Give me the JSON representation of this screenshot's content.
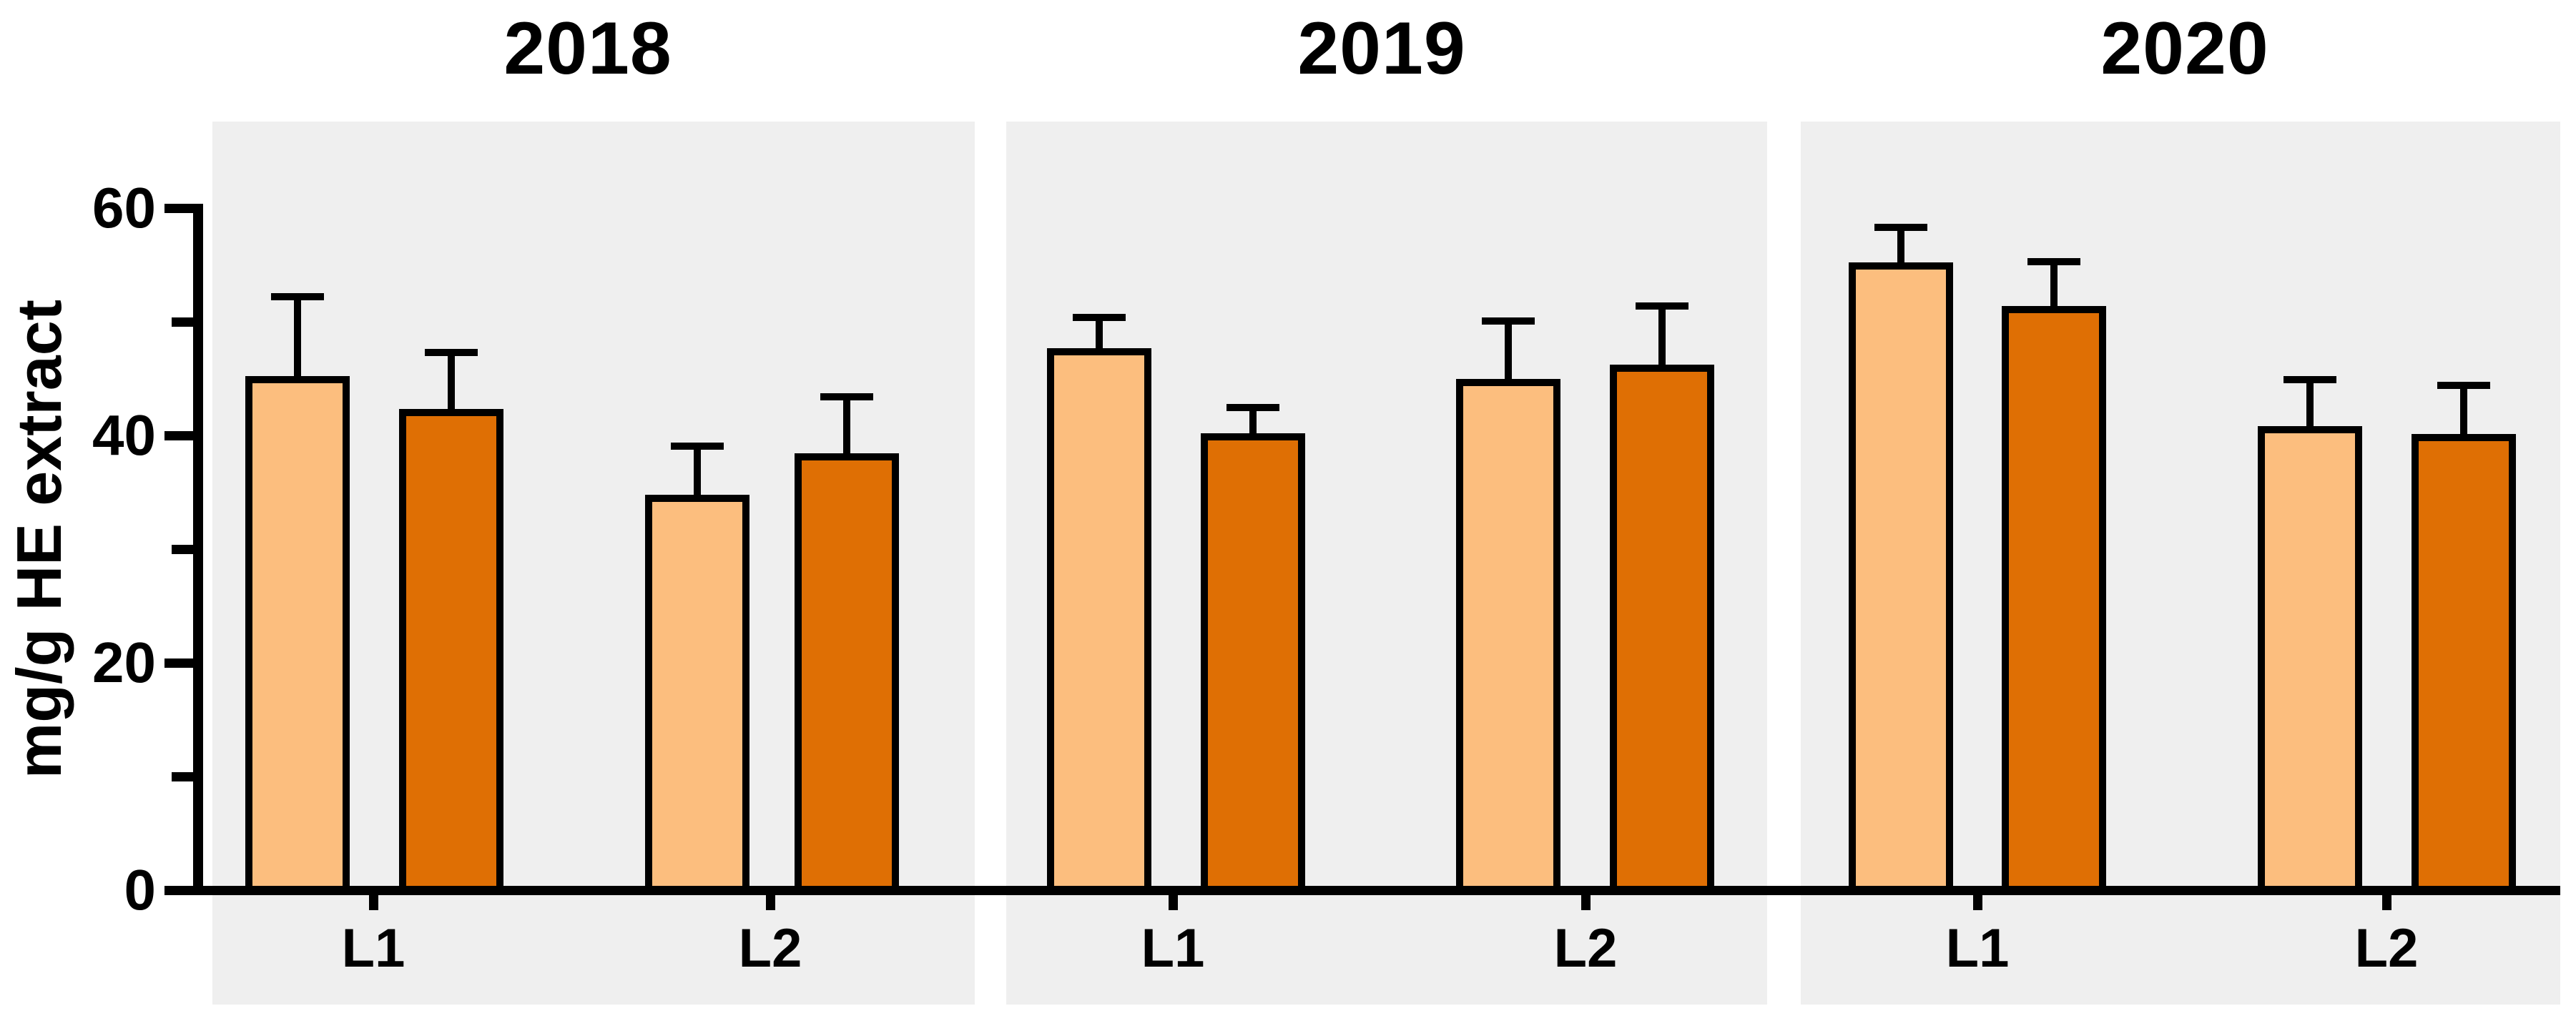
{
  "figure": {
    "background": "#FFFFFF",
    "panel_background": "#EFEFEF",
    "axis_color": "#000000",
    "light_bar_color": "#FCBE7E",
    "dark_bar_color": "#DF6F04"
  },
  "chart_data": {
    "type": "bar",
    "title": "",
    "ylabel": "mg/g HE extract",
    "xlabel": "",
    "ylim": [
      0,
      65
    ],
    "yticks": [
      0,
      20,
      40,
      60
    ],
    "yminorticks": [
      10,
      30,
      50
    ],
    "grid": false,
    "legend_position": "none",
    "error_bars": "upper only",
    "categories": [
      "L1",
      "L2"
    ],
    "panels": [
      {
        "title": "2018",
        "series": [
          {
            "name": "light-orange",
            "values": [
              45.2,
              34.8
            ],
            "errors": [
              6.6,
              3.9
            ]
          },
          {
            "name": "dark-orange",
            "values": [
              42.3,
              38.4
            ],
            "errors": [
              4.6,
              4.6
            ]
          }
        ]
      },
      {
        "title": "2019",
        "series": [
          {
            "name": "light-orange",
            "values": [
              47.7,
              45.0
            ],
            "errors": [
              2.3,
              4.7
            ]
          },
          {
            "name": "dark-orange",
            "values": [
              40.2,
              46.2
            ],
            "errors": [
              1.9,
              4.8
            ]
          }
        ]
      },
      {
        "title": "2020",
        "series": [
          {
            "name": "light-orange",
            "values": [
              55.2,
              40.8
            ],
            "errors": [
              2.7,
              3.7
            ]
          },
          {
            "name": "dark-orange",
            "values": [
              51.4,
              40.1
            ],
            "errors": [
              3.5,
              3.9
            ]
          }
        ]
      }
    ]
  }
}
